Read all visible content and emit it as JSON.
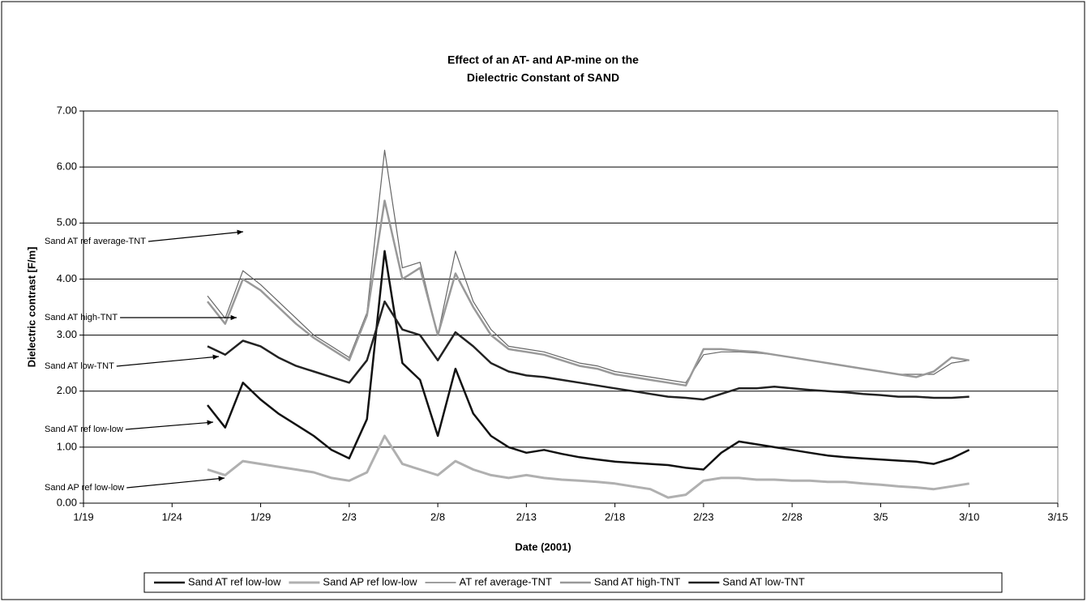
{
  "chart_data": {
    "type": "line",
    "title": [
      "Effect of an AT- and AP-mine on the",
      "Dielectric Constant of SAND"
    ],
    "xlabel": "Date (2001)",
    "ylabel": "Dielectric contrast [F/m]",
    "x": [
      "1/26",
      "1/27",
      "1/28",
      "1/29",
      "1/30",
      "1/31",
      "2/1",
      "2/2",
      "2/3",
      "2/4",
      "2/5",
      "2/6",
      "2/7",
      "2/8",
      "2/9",
      "2/10",
      "2/11",
      "2/12",
      "2/13",
      "2/14",
      "2/15",
      "2/16",
      "2/17",
      "2/18",
      "2/19",
      "2/20",
      "2/21",
      "2/22",
      "2/23",
      "2/24",
      "2/25",
      "2/26",
      "2/27",
      "2/28",
      "3/1",
      "3/2",
      "3/3",
      "3/4",
      "3/5",
      "3/6",
      "3/7",
      "3/8",
      "3/9",
      "3/10"
    ],
    "series": [
      {
        "name": "Sand AT ref low-low",
        "color": "#111111",
        "width": 2.5,
        "values": [
          1.75,
          1.35,
          2.15,
          1.85,
          1.6,
          1.4,
          1.2,
          0.95,
          0.8,
          1.5,
          4.5,
          2.5,
          2.2,
          1.2,
          2.4,
          1.6,
          1.2,
          1.0,
          0.9,
          0.95,
          0.88,
          0.82,
          0.78,
          0.74,
          0.72,
          0.7,
          0.68,
          0.63,
          0.6,
          0.9,
          1.1,
          1.05,
          1.0,
          0.95,
          0.9,
          0.85,
          0.82,
          0.8,
          0.78,
          0.76,
          0.74,
          0.7,
          0.8,
          0.95
        ]
      },
      {
        "name": "Sand AP ref low-low",
        "color": "#b0b0b0",
        "width": 3,
        "values": [
          0.6,
          0.5,
          0.75,
          0.7,
          0.65,
          0.6,
          0.55,
          0.45,
          0.4,
          0.55,
          1.2,
          0.7,
          0.6,
          0.5,
          0.75,
          0.6,
          0.5,
          0.45,
          0.5,
          0.45,
          0.42,
          0.4,
          0.38,
          0.35,
          0.3,
          0.25,
          0.1,
          0.15,
          0.4,
          0.45,
          0.45,
          0.42,
          0.42,
          0.4,
          0.4,
          0.38,
          0.38,
          0.35,
          0.33,
          0.3,
          0.28,
          0.25,
          0.3,
          0.35
        ]
      },
      {
        "name": "AT ref average-TNT",
        "color": "#666666",
        "width": 1.2,
        "values": [
          3.7,
          3.3,
          4.15,
          3.9,
          3.6,
          3.3,
          3.0,
          2.8,
          2.6,
          3.4,
          6.3,
          4.2,
          4.3,
          3.0,
          4.5,
          3.6,
          3.1,
          2.8,
          2.75,
          2.7,
          2.6,
          2.5,
          2.45,
          2.35,
          2.3,
          2.25,
          2.2,
          2.15,
          2.65,
          2.7,
          2.7,
          2.68,
          2.65,
          2.6,
          2.55,
          2.5,
          2.45,
          2.4,
          2.35,
          2.3,
          2.3,
          2.3,
          2.5,
          2.55
        ]
      },
      {
        "name": "Sand AT high-TNT",
        "color": "#999999",
        "width": 2.5,
        "values": [
          3.6,
          3.2,
          4.0,
          3.8,
          3.5,
          3.2,
          2.95,
          2.75,
          2.55,
          3.35,
          5.4,
          4.0,
          4.2,
          3.0,
          4.1,
          3.5,
          3.0,
          2.75,
          2.7,
          2.65,
          2.55,
          2.45,
          2.4,
          2.3,
          2.25,
          2.2,
          2.15,
          2.1,
          2.75,
          2.75,
          2.72,
          2.7,
          2.65,
          2.6,
          2.55,
          2.5,
          2.45,
          2.4,
          2.35,
          2.3,
          2.25,
          2.35,
          2.6,
          2.55
        ]
      },
      {
        "name": "Sand AT low-TNT",
        "color": "#222222",
        "width": 2.5,
        "values": [
          2.8,
          2.65,
          2.9,
          2.8,
          2.6,
          2.45,
          2.35,
          2.25,
          2.15,
          2.55,
          3.6,
          3.1,
          3.0,
          2.55,
          3.05,
          2.8,
          2.5,
          2.35,
          2.28,
          2.25,
          2.2,
          2.15,
          2.1,
          2.05,
          2.0,
          1.95,
          1.9,
          1.88,
          1.85,
          1.95,
          2.05,
          2.05,
          2.08,
          2.05,
          2.02,
          2.0,
          1.98,
          1.95,
          1.93,
          1.9,
          1.9,
          1.88,
          1.88,
          1.9
        ]
      }
    ],
    "xlim": [
      "1/19",
      "3/15"
    ],
    "xticks": [
      "1/19",
      "1/24",
      "1/29",
      "2/3",
      "2/8",
      "2/13",
      "2/18",
      "2/23",
      "2/28",
      "3/5",
      "3/10",
      "3/15"
    ],
    "ylim": [
      0,
      7
    ],
    "yticks": [
      {
        "value": 0,
        "label": "0.00"
      },
      {
        "value": 1,
        "label": "1.00"
      },
      {
        "value": 2,
        "label": "2.00"
      },
      {
        "value": 3,
        "label": "3.00"
      },
      {
        "value": 4,
        "label": "4.00"
      },
      {
        "value": 5,
        "label": "5.00"
      },
      {
        "value": 6,
        "label": "6.00"
      },
      {
        "value": 7,
        "label": "7.00"
      }
    ],
    "grid": true,
    "legend": "bottom",
    "annotations": [
      "Sand AT ref average-TNT",
      "Sand AT high-TNT",
      "Sand AT low-TNT",
      "Sand AT ref low-low",
      "Sand AP ref low-low"
    ]
  }
}
